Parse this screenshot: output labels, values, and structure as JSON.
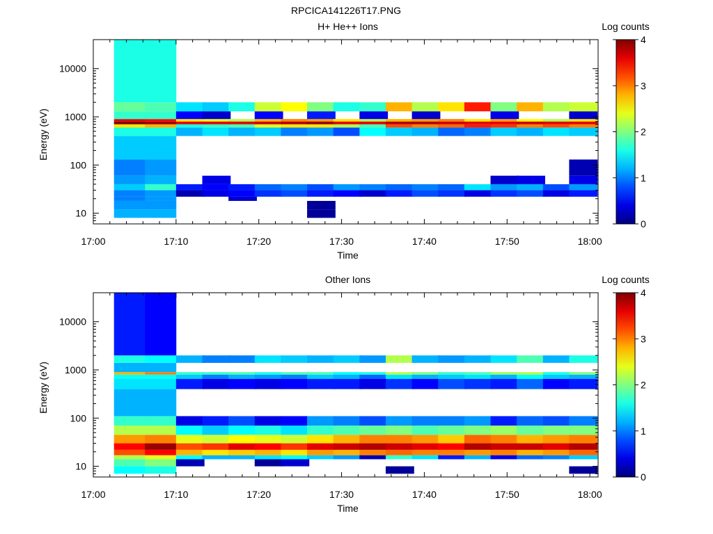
{
  "figure": {
    "title": "RPCICA141226T17.PNG"
  },
  "chart_data": [
    {
      "type": "heatmap",
      "title": "H+ He++ Ions",
      "xlabel": "Time",
      "ylabel": "Energy (eV)",
      "colorbar_label": "Log counts",
      "colorbar_ticks": [
        "0",
        "1",
        "2",
        "3",
        "4"
      ],
      "clim": [
        0,
        4
      ],
      "x_ticks": [
        "17:00",
        "17:10",
        "17:20",
        "17:30",
        "17:40",
        "17:50",
        "18:00"
      ],
      "xlim": [
        "17:00",
        "18:01"
      ],
      "y_scale": "log",
      "y_ticks": [
        "10",
        "100",
        "1000",
        "10000"
      ],
      "ylim": [
        6,
        40000
      ],
      "colormap": "jet",
      "grid": false,
      "time_bins": [
        "17:02:30",
        "17:06:15",
        "17:10:00",
        "17:13:10",
        "17:16:20",
        "17:19:30",
        "17:22:40",
        "17:25:50",
        "17:29:00",
        "17:32:10",
        "17:35:20",
        "17:38:30",
        "17:41:40",
        "17:44:50",
        "17:48:00",
        "17:51:10",
        "17:54:20",
        "17:57:30"
      ],
      "energy_bands": [
        {
          "range_eV": [
            8,
            12
          ],
          "values": [
            1.2,
            1.2,
            null,
            null,
            null,
            null,
            null,
            0.1,
            null,
            null,
            null,
            null,
            null,
            null,
            null,
            null,
            null,
            null
          ]
        },
        {
          "range_eV": [
            12,
            18
          ],
          "values": [
            1.1,
            1.1,
            null,
            null,
            null,
            null,
            null,
            0.1,
            null,
            null,
            null,
            null,
            null,
            null,
            null,
            null,
            null,
            null
          ]
        },
        {
          "range_eV": [
            18,
            22
          ],
          "values": [
            1.0,
            1.1,
            null,
            null,
            0.3,
            null,
            null,
            null,
            null,
            null,
            null,
            null,
            null,
            null,
            null,
            null,
            null,
            null
          ]
        },
        {
          "range_eV": [
            22,
            30
          ],
          "values": [
            1.0,
            1.1,
            0.2,
            0.4,
            0.5,
            0.7,
            0.8,
            0.6,
            0.5,
            0.3,
            0.6,
            0.8,
            0.7,
            0.4,
            0.7,
            0.8,
            0.4,
            0.6
          ]
        },
        {
          "range_eV": [
            30,
            40
          ],
          "values": [
            1.3,
            1.7,
            0.6,
            0.5,
            0.6,
            0.9,
            1.0,
            0.8,
            1.1,
            1.0,
            0.9,
            1.0,
            0.9,
            1.4,
            1.1,
            1.2,
            0.8,
            1.1
          ]
        },
        {
          "range_eV": [
            40,
            60
          ],
          "values": [
            1.1,
            1.2,
            null,
            0.4,
            null,
            null,
            null,
            null,
            null,
            null,
            null,
            null,
            null,
            null,
            0.3,
            0.4,
            null,
            0.4
          ]
        },
        {
          "range_eV": [
            60,
            130
          ],
          "values": [
            1.0,
            1.1,
            null,
            null,
            null,
            null,
            null,
            null,
            null,
            null,
            null,
            null,
            null,
            null,
            null,
            null,
            null,
            0.2
          ]
        },
        {
          "range_eV": [
            130,
            400
          ],
          "values": [
            1.3,
            1.3,
            null,
            null,
            null,
            null,
            null,
            null,
            null,
            null,
            null,
            null,
            null,
            null,
            null,
            null,
            null,
            null
          ]
        },
        {
          "range_eV": [
            400,
            600
          ],
          "values": [
            1.6,
            1.6,
            1.2,
            1.4,
            1.2,
            1.3,
            1.0,
            1.1,
            0.8,
            1.5,
            1.3,
            1.2,
            0.9,
            1.0,
            1.3,
            1.2,
            1.4,
            1.3
          ]
        },
        {
          "range_eV": [
            600,
            700
          ],
          "values": [
            2.6,
            2.8,
            1.6,
            1.7,
            1.8,
            2.4,
            2.6,
            2.6,
            2.2,
            1.8,
            3.2,
            3.0,
            3.1,
            3.4,
            3.3,
            3.0,
            3.2,
            3.0
          ]
        },
        {
          "range_eV": [
            700,
            800
          ],
          "values": [
            4.0,
            3.9,
            3.6,
            3.6,
            3.6,
            3.7,
            3.8,
            3.9,
            3.6,
            3.6,
            3.8,
            3.8,
            3.7,
            3.6,
            3.6,
            3.7,
            3.6,
            3.6
          ]
        },
        {
          "range_eV": [
            800,
            900
          ],
          "values": [
            3.6,
            3.5,
            2.6,
            2.4,
            2.2,
            2.8,
            3.0,
            2.9,
            2.6,
            2.2,
            2.8,
            2.9,
            3.0,
            2.6,
            2.9,
            2.5,
            2.2,
            2.6
          ]
        },
        {
          "range_eV": [
            900,
            1300
          ],
          "values": [
            1.7,
            1.7,
            0.5,
            0.3,
            null,
            0.5,
            null,
            0.6,
            null,
            0.4,
            null,
            0.3,
            null,
            null,
            0.4,
            null,
            null,
            0.3
          ]
        },
        {
          "range_eV": [
            1300,
            2000
          ],
          "values": [
            1.9,
            1.8,
            1.4,
            1.3,
            1.6,
            2.3,
            2.5,
            2.0,
            1.6,
            1.7,
            2.8,
            2.2,
            2.6,
            3.4,
            2.0,
            2.8,
            2.2,
            2.3
          ]
        },
        {
          "range_eV": [
            2000,
            40000
          ],
          "values": [
            1.6,
            1.6,
            null,
            null,
            null,
            null,
            null,
            null,
            null,
            null,
            null,
            null,
            null,
            null,
            null,
            null,
            null,
            null
          ]
        }
      ]
    },
    {
      "type": "heatmap",
      "title": "Other Ions",
      "xlabel": "Time",
      "ylabel": "Energy (eV)",
      "colorbar_label": "Log counts",
      "colorbar_ticks": [
        "0",
        "1",
        "2",
        "3",
        "4"
      ],
      "clim": [
        0,
        4
      ],
      "x_ticks": [
        "17:00",
        "17:10",
        "17:20",
        "17:30",
        "17:40",
        "17:50",
        "18:00"
      ],
      "xlim": [
        "17:00",
        "18:01"
      ],
      "y_scale": "log",
      "y_ticks": [
        "10",
        "100",
        "1000",
        "10000"
      ],
      "ylim": [
        6,
        40000
      ],
      "colormap": "jet",
      "grid": false,
      "time_bins": [
        "17:02:30",
        "17:06:15",
        "17:10:00",
        "17:13:10",
        "17:16:20",
        "17:19:30",
        "17:22:40",
        "17:25:50",
        "17:29:00",
        "17:32:10",
        "17:35:20",
        "17:38:30",
        "17:41:40",
        "17:44:50",
        "17:48:00",
        "17:51:10",
        "17:54:20",
        "17:57:30"
      ],
      "energy_bands": [
        {
          "range_eV": [
            7,
            10
          ],
          "values": [
            1.5,
            1.6,
            null,
            null,
            null,
            null,
            null,
            null,
            null,
            null,
            0.1,
            null,
            null,
            null,
            null,
            null,
            null,
            0.1
          ]
        },
        {
          "range_eV": [
            10,
            14
          ],
          "values": [
            1.8,
            2.0,
            0.2,
            null,
            null,
            0.1,
            0.3,
            null,
            null,
            null,
            null,
            null,
            null,
            null,
            null,
            null,
            null,
            null
          ]
        },
        {
          "range_eV": [
            14,
            17
          ],
          "values": [
            2.2,
            2.4,
            1.5,
            1.2,
            1.2,
            1.4,
            1.5,
            1.3,
            1.1,
            0.2,
            1.7,
            1.4,
            0.6,
            1.2,
            0.4,
            0.9,
            1.0,
            1.3
          ]
        },
        {
          "range_eV": [
            17,
            22
          ],
          "values": [
            3.2,
            3.5,
            2.8,
            2.6,
            2.7,
            2.8,
            2.6,
            2.9,
            2.8,
            3.0,
            3.1,
            3.0,
            3.0,
            2.9,
            3.0,
            2.8,
            2.9,
            3.1
          ]
        },
        {
          "range_eV": [
            22,
            30
          ],
          "values": [
            3.5,
            3.9,
            3.2,
            3.3,
            3.6,
            3.5,
            3.3,
            3.6,
            3.7,
            3.8,
            3.7,
            3.6,
            3.5,
            3.8,
            3.7,
            3.7,
            3.6,
            3.8
          ]
        },
        {
          "range_eV": [
            30,
            45
          ],
          "values": [
            2.9,
            3.0,
            2.4,
            2.3,
            2.5,
            2.4,
            2.3,
            2.6,
            2.8,
            3.0,
            3.0,
            2.9,
            2.7,
            3.1,
            3.0,
            2.8,
            2.9,
            3.0
          ]
        },
        {
          "range_eV": [
            45,
            70
          ],
          "values": [
            2.2,
            2.2,
            1.5,
            1.3,
            1.5,
            1.6,
            1.4,
            1.7,
            1.8,
            1.9,
            2.0,
            1.8,
            1.9,
            2.0,
            2.1,
            1.9,
            2.0,
            2.0
          ]
        },
        {
          "range_eV": [
            70,
            110
          ],
          "values": [
            1.7,
            1.7,
            0.4,
            0.6,
            0.8,
            0.4,
            0.5,
            1.1,
            1.0,
            0.8,
            1.1,
            1.0,
            1.0,
            1.1,
            0.6,
            0.9,
            0.8,
            1.0
          ]
        },
        {
          "range_eV": [
            110,
            400
          ],
          "values": [
            1.2,
            1.2,
            null,
            null,
            null,
            null,
            null,
            null,
            null,
            null,
            null,
            null,
            null,
            null,
            null,
            null,
            null,
            null
          ]
        },
        {
          "range_eV": [
            400,
            650
          ],
          "values": [
            1.4,
            1.4,
            0.6,
            0.4,
            0.5,
            0.4,
            0.5,
            0.6,
            0.6,
            0.4,
            0.7,
            0.5,
            0.8,
            0.7,
            0.6,
            0.9,
            0.5,
            0.6
          ]
        },
        {
          "range_eV": [
            650,
            800
          ],
          "values": [
            1.5,
            1.5,
            1.3,
            1.0,
            1.2,
            1.1,
            1.0,
            1.3,
            1.2,
            0.9,
            1.4,
            1.2,
            1.3,
            1.4,
            1.2,
            1.5,
            1.3,
            1.2
          ]
        },
        {
          "range_eV": [
            800,
            900
          ],
          "values": [
            2.8,
            3.0,
            1.7,
            1.7,
            1.8,
            1.6,
            1.8,
            1.8,
            1.5,
            1.6,
            2.2,
            2.0,
            1.7,
            1.8,
            2.1,
            2.2,
            1.6,
            2.0
          ]
        },
        {
          "range_eV": [
            900,
            1400
          ],
          "values": [
            1.2,
            1.2,
            null,
            null,
            null,
            null,
            null,
            null,
            null,
            null,
            null,
            null,
            null,
            null,
            null,
            null,
            null,
            null
          ]
        },
        {
          "range_eV": [
            1400,
            2000
          ],
          "values": [
            1.6,
            1.5,
            1.2,
            1.0,
            1.0,
            1.4,
            1.3,
            1.2,
            1.3,
            1.1,
            2.2,
            1.2,
            1.1,
            1.2,
            1.4,
            1.8,
            1.2,
            1.6
          ]
        },
        {
          "range_eV": [
            2000,
            40000
          ],
          "values": [
            0.6,
            0.5,
            null,
            null,
            null,
            null,
            null,
            null,
            null,
            null,
            null,
            null,
            null,
            null,
            null,
            null,
            null,
            null
          ]
        }
      ]
    }
  ]
}
